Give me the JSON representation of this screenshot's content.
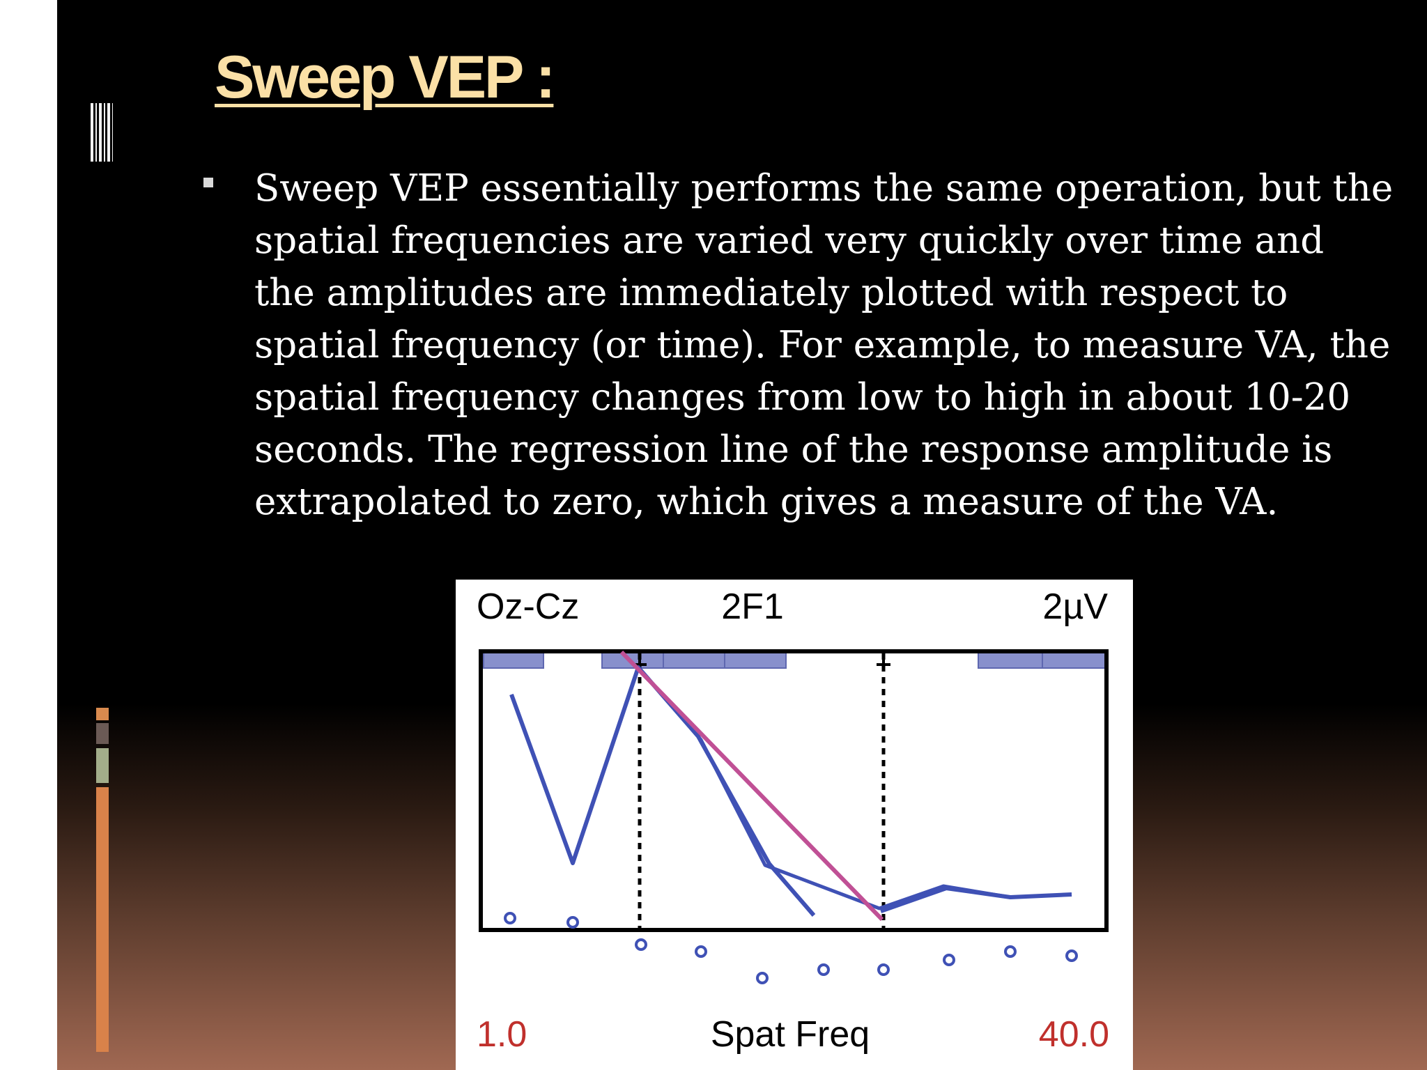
{
  "slide": {
    "title": "Sweep VEP :",
    "bullet_text": "Sweep VEP essentially performs the same operation, but the\nspatial frequencies are varied very quickly over time and\nthe amplitudes are immediately plotted with respect to\nspatial frequency (or time). For example, to measure VA, the\nspatial frequency changes from low to high in about 10-20\nseconds. The regression line of the response amplitude is\nextrapolated to zero, which gives a measure of the VA."
  },
  "figure": {
    "header_left": "Oz-Cz",
    "header_center": "2F1",
    "header_right": "2µV",
    "x_min_label": "1.0",
    "x_label": "Spat Freq",
    "x_max_label": "40.0",
    "colors": {
      "response": "#3f51b5",
      "regression": "#c05095",
      "range_label": "#c0302c",
      "bins": "#8890cc"
    }
  }
}
